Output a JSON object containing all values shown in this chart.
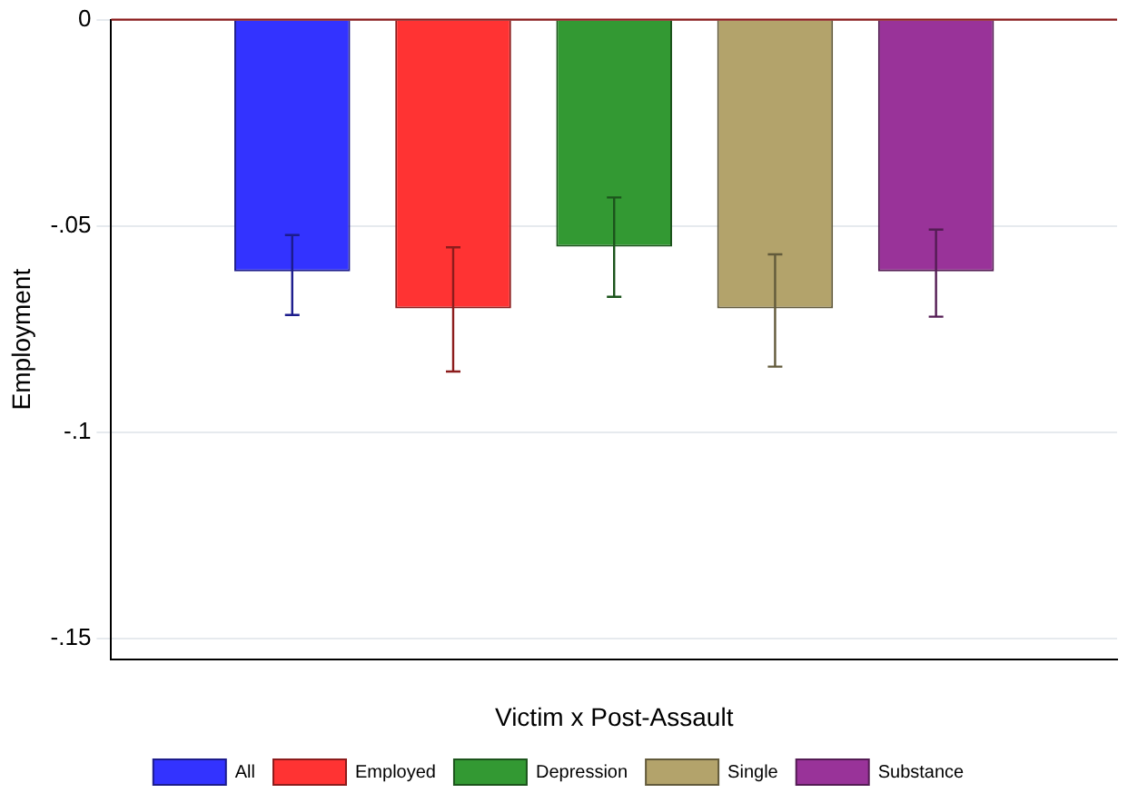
{
  "chart_data": {
    "type": "bar",
    "xlabel": "Victim x Post-Assault",
    "ylabel": "Employment",
    "categories": [
      null
    ],
    "series": [
      {
        "name": "All",
        "color": "#3333ff",
        "values": [
          -0.061
        ],
        "errors": [
          [
            -0.0716,
            -0.0522
          ]
        ]
      },
      {
        "name": "Employed",
        "color": "#ff3333",
        "values": [
          -0.07
        ],
        "errors": [
          [
            -0.0853,
            -0.0552
          ]
        ]
      },
      {
        "name": "Depression",
        "color": "#339933",
        "values": [
          -0.055
        ],
        "errors": [
          [
            -0.0672,
            -0.0431
          ]
        ]
      },
      {
        "name": "Single",
        "color": "#b3a36b",
        "values": [
          -0.07
        ],
        "errors": [
          [
            -0.0841,
            -0.0569
          ]
        ]
      },
      {
        "name": "Substance",
        "color": "#993399",
        "values": [
          -0.061
        ],
        "errors": [
          [
            -0.072,
            -0.0509
          ]
        ]
      }
    ],
    "ylim": [
      -0.155,
      0
    ],
    "yticks": [
      {
        "value": 0,
        "label": "0"
      },
      {
        "value": -0.05,
        "label": "-.05"
      },
      {
        "value": -0.1,
        "label": "-.1"
      },
      {
        "value": -0.15,
        "label": "-.15"
      }
    ],
    "grid": "y",
    "legend": "bottom",
    "ref_lines": [
      {
        "axis": "y",
        "value": 0,
        "color": "#8b1a1a"
      }
    ]
  }
}
